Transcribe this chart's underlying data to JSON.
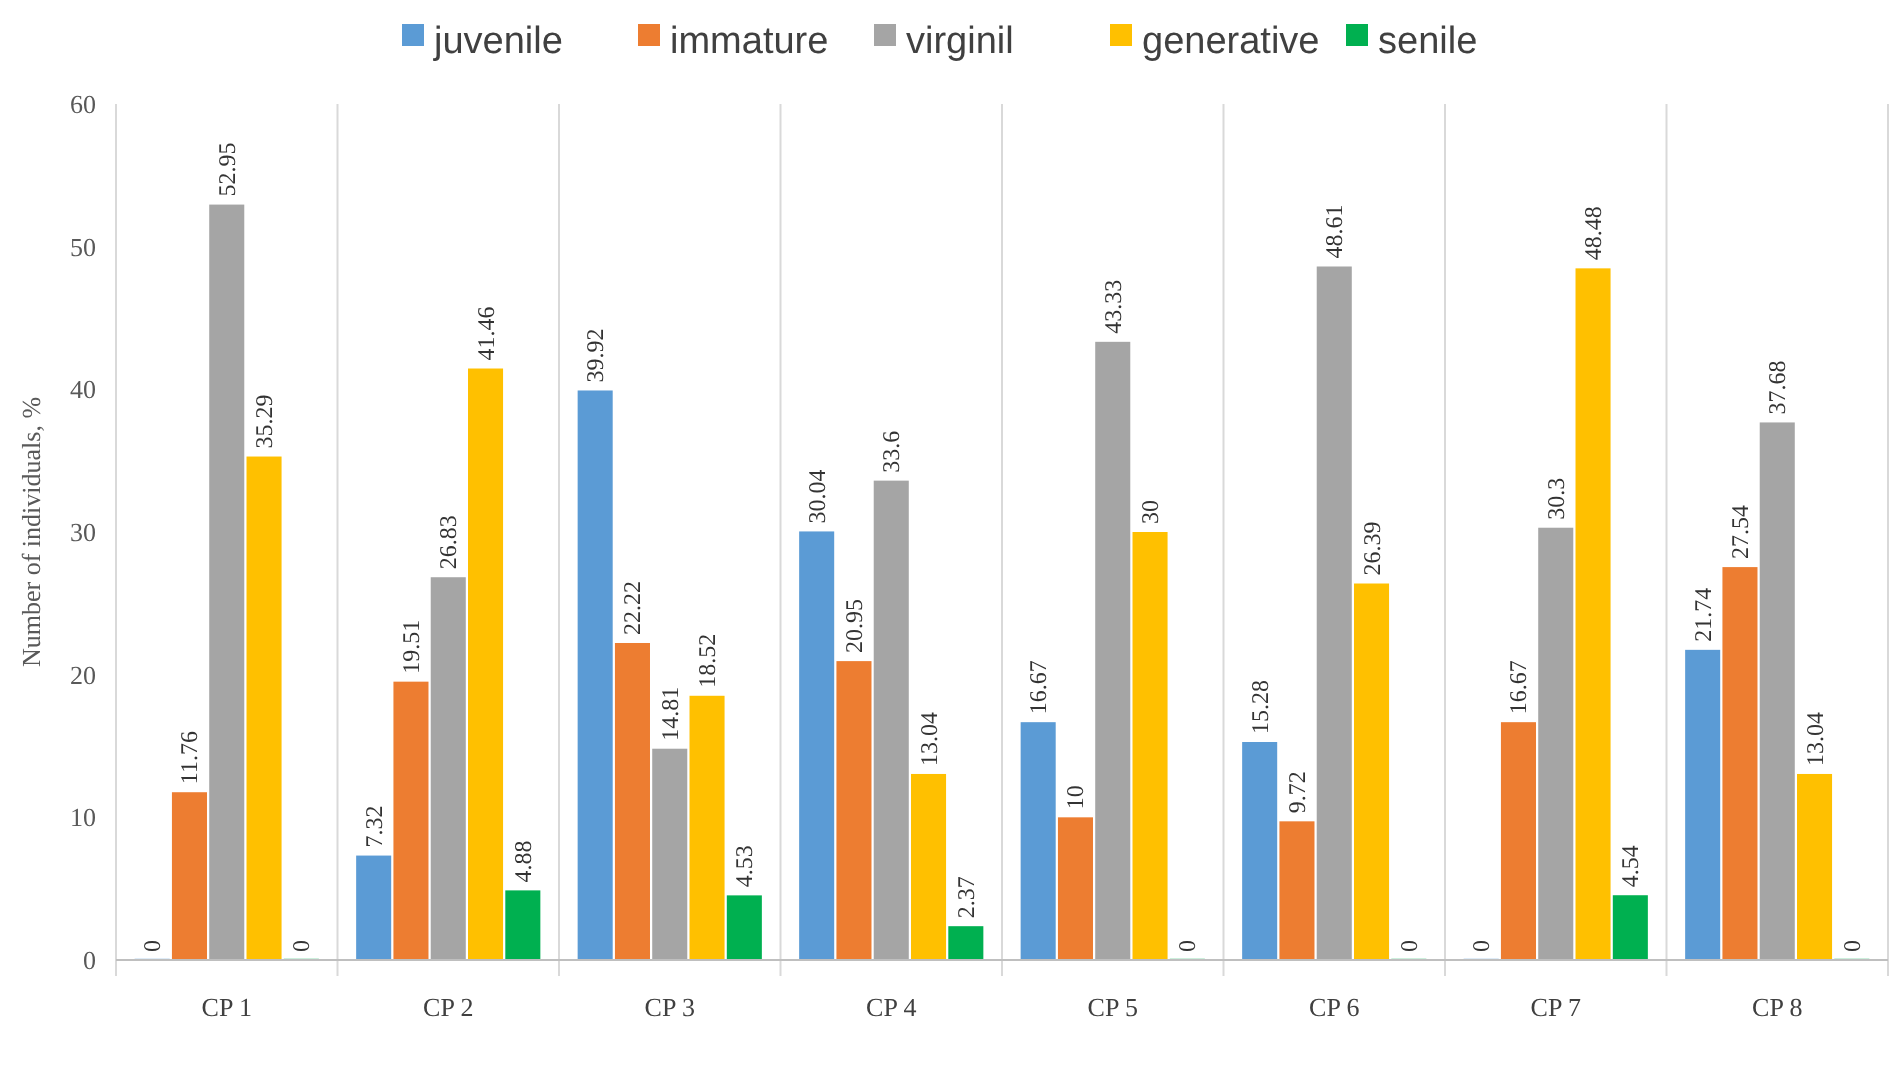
{
  "chart_data": {
    "type": "bar",
    "ylabel": "Number of individuals, %",
    "categories": [
      "CP 1",
      "CP 2",
      "CP 3",
      "CP 4",
      "CP 5",
      "CP 6",
      "CP 7",
      "CP 8"
    ],
    "series": [
      {
        "name": "juvenile",
        "color": "#5b9bd5",
        "values": [
          0,
          7.32,
          39.92,
          30.04,
          16.67,
          15.28,
          0,
          21.74
        ]
      },
      {
        "name": "immature",
        "color": "#ed7d31",
        "values": [
          11.76,
          19.51,
          22.22,
          20.95,
          10,
          9.72,
          16.67,
          27.54
        ]
      },
      {
        "name": "virginil",
        "color": "#a5a5a5",
        "values": [
          52.95,
          26.83,
          14.81,
          33.6,
          43.33,
          48.61,
          30.3,
          37.68
        ]
      },
      {
        "name": "generative",
        "color": "#ffc000",
        "values": [
          35.29,
          41.46,
          18.52,
          13.04,
          30,
          26.39,
          48.48,
          13.04
        ]
      },
      {
        "name": "senile",
        "color": "#00b050",
        "values": [
          0,
          4.88,
          4.53,
          2.37,
          0,
          0,
          4.54,
          0
        ]
      }
    ],
    "ylim": [
      0,
      60
    ],
    "yticks": [
      0,
      10,
      20,
      30,
      40,
      50,
      60
    ],
    "grid": "x",
    "legend": "top",
    "data_labels": true
  }
}
